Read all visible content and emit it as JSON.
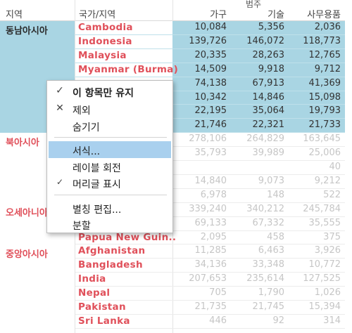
{
  "header": {
    "category_header": "범주",
    "region_col": "지역",
    "country_col": "국가/지역",
    "columns": [
      "가구",
      "기술",
      "사무용품"
    ]
  },
  "regions": [
    {
      "name": "동남아시아",
      "selected": true
    },
    {
      "name": "북아시아",
      "selected": false
    },
    {
      "name": "오세아니아",
      "selected": false
    },
    {
      "name": "중앙아시아",
      "selected": false
    }
  ],
  "rows": [
    {
      "country": "Cambodia",
      "values": [
        "10,084",
        "5,356",
        "2,036"
      ]
    },
    {
      "country": "Indonesia",
      "values": [
        "139,726",
        "146,072",
        "118,773"
      ]
    },
    {
      "country": "Malaysia",
      "values": [
        "20,335",
        "28,263",
        "12,765"
      ]
    },
    {
      "country": "Myanmar (Burma)",
      "values": [
        "14,509",
        "9,918",
        "9,712"
      ]
    },
    {
      "country": "",
      "values": [
        "74,138",
        "67,913",
        "41,369"
      ]
    },
    {
      "country": "",
      "values": [
        "10,342",
        "14,846",
        "15,098"
      ]
    },
    {
      "country": "",
      "values": [
        "22,195",
        "35,064",
        "19,793"
      ]
    },
    {
      "country": "",
      "values": [
        "21,746",
        "22,321",
        "21,733"
      ]
    },
    {
      "country": "",
      "values": [
        "278,106",
        "264,829",
        "163,645"
      ]
    },
    {
      "country": "",
      "values": [
        "35,793",
        "39,989",
        "25,006"
      ]
    },
    {
      "country": "",
      "values": [
        "",
        "",
        "40"
      ]
    },
    {
      "country": "",
      "values": [
        "14,840",
        "9,073",
        "9,212"
      ]
    },
    {
      "country": "",
      "values": [
        "6,978",
        "148",
        "522"
      ]
    },
    {
      "country": "",
      "values": [
        "339,240",
        "340,212",
        "245,784"
      ]
    },
    {
      "country": "",
      "values": [
        "69,133",
        "67,332",
        "35,555"
      ]
    },
    {
      "country": "Papua New Guin..",
      "values": [
        "2,095",
        "458",
        "375"
      ]
    },
    {
      "country": "Afghanistan",
      "values": [
        "11,285",
        "6,463",
        "3,926"
      ]
    },
    {
      "country": "Bangladesh",
      "values": [
        "34,136",
        "33,348",
        "10,772"
      ]
    },
    {
      "country": "India",
      "values": [
        "207,653",
        "235,614",
        "127,525"
      ]
    },
    {
      "country": "Nepal",
      "values": [
        "705",
        "1,790",
        "1,026"
      ]
    },
    {
      "country": "Pakistan",
      "values": [
        "21,735",
        "21,745",
        "15,394"
      ]
    },
    {
      "country": "Sri Lanka",
      "values": [
        "446",
        "92",
        "314"
      ]
    }
  ],
  "context_menu": {
    "items": [
      {
        "label": "이 항목만 유지",
        "icon": "check-icon",
        "glyph": "✓",
        "bold": true
      },
      {
        "label": "제외",
        "icon": "close-icon",
        "glyph": "✕",
        "bold": false
      },
      {
        "label": "숨기기",
        "icon": "",
        "glyph": "",
        "bold": false
      },
      {
        "label": "서식...",
        "icon": "",
        "glyph": "",
        "bold": false,
        "highlighted": true
      },
      {
        "label": "레이블 회전",
        "icon": "",
        "glyph": "",
        "bold": false
      },
      {
        "label": "머리글 표시",
        "icon": "check-icon",
        "glyph": "✓",
        "bold": false
      },
      {
        "label": "별칭 편집...",
        "icon": "",
        "glyph": "",
        "bold": false
      },
      {
        "label": "분할",
        "icon": "",
        "glyph": "",
        "bold": false
      }
    ]
  },
  "colors": {
    "accent_text": "#e0505a",
    "selection": "#a9d5e3",
    "menu_highlight": "#a9d0ee"
  }
}
